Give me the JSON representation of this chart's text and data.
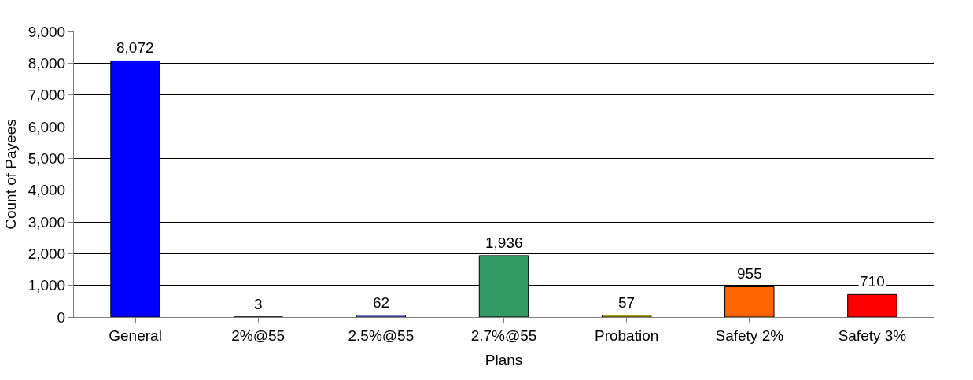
{
  "chart_data": {
    "type": "bar",
    "xlabel": "Plans",
    "ylabel": "Count of Payees",
    "categories": [
      "General",
      "2%@55",
      "2.5%@55",
      "2.7%@55",
      "Probation",
      "Safety 2%",
      "Safety 3%"
    ],
    "values": [
      8072,
      3,
      62,
      1936,
      57,
      955,
      710
    ],
    "colors": [
      "#0000ff",
      "#993300",
      "#8080e0",
      "#339966",
      "#cccc00",
      "#ff6600",
      "#ff0000"
    ],
    "value_labels": [
      "8,072",
      "3",
      "62",
      "1,936",
      "57",
      "955",
      "710"
    ],
    "ylim": [
      0,
      9000
    ],
    "yticks": [
      0,
      {
        "value": 1000,
        "label": "1,000"
      },
      {
        "value": 2000,
        "label": "2,000"
      },
      {
        "value": 3000,
        "label": "3,000"
      },
      {
        "value": 4000,
        "label": "4,000"
      },
      {
        "value": 5000,
        "label": "5,000"
      },
      {
        "value": 6000,
        "label": "6,000"
      },
      {
        "value": 7000,
        "label": "7,000"
      },
      {
        "value": 8000,
        "label": "8,000"
      },
      {
        "value": 9000,
        "label": "9,000"
      }
    ],
    "grid": "y"
  }
}
